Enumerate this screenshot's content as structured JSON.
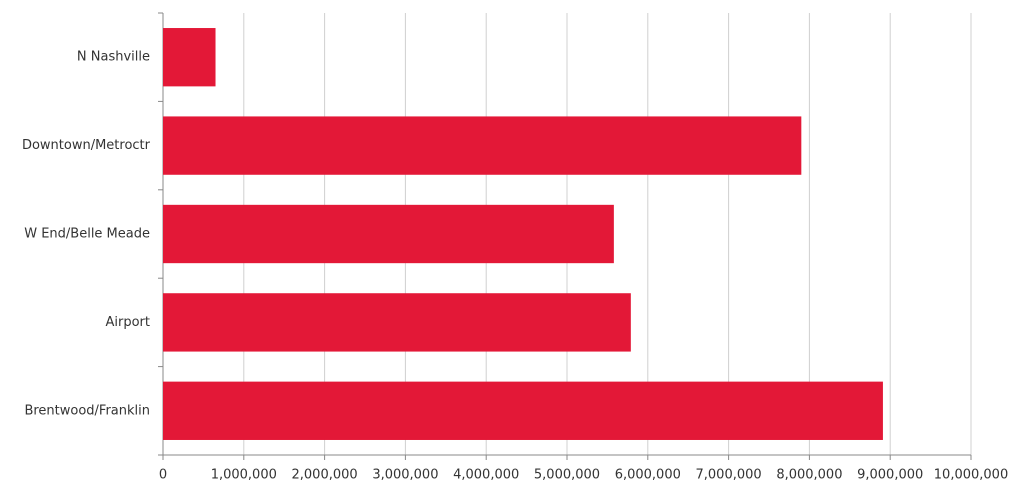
{
  "chart_data": {
    "type": "bar",
    "orientation": "horizontal",
    "categories": [
      "N Nashville",
      "Downtown/Metroctr",
      "W End/Belle Meade",
      "Airport",
      "Brentwood/Franklin"
    ],
    "values": [
      650000,
      7900000,
      5580000,
      5790000,
      8910000
    ],
    "color": "#e31837",
    "xlim": [
      0,
      10000000
    ],
    "xticks": [
      0,
      {
        "value": 1000000,
        "label": "1,000,000"
      },
      {
        "value": 2000000,
        "label": "2,000,000"
      },
      {
        "value": 3000000,
        "label": "3,000,000"
      },
      {
        "value": 4000000,
        "label": "4,000,000"
      },
      {
        "value": 5000000,
        "label": "5,000,000"
      },
      {
        "value": 6000000,
        "label": "6,000,000"
      },
      {
        "value": 7000000,
        "label": "7,000,000"
      },
      {
        "value": 8000000,
        "label": "8,000,000"
      },
      {
        "value": 9000000,
        "label": "9,000,000"
      },
      {
        "value": 10000000,
        "label": "10,000,000"
      }
    ],
    "grid": true
  }
}
